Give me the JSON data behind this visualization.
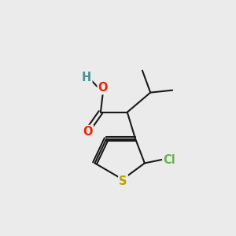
{
  "bg_color": "#ebebeb",
  "bond_color": "#1a1a1a",
  "bond_width": 1.5,
  "atom_colors": {
    "S": "#b8a000",
    "Cl": "#6ab04c",
    "O": "#ee2200",
    "H": "#4a9090",
    "C": "#1a1a1a"
  },
  "font_size_atom": 10.5
}
